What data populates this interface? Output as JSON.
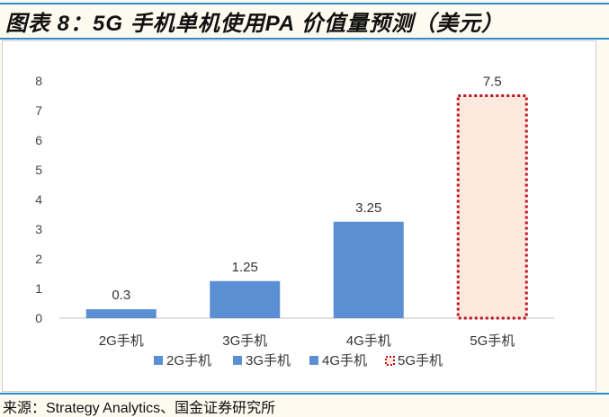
{
  "title": "图表 8：5G 手机单机使用PA 价值量预测（美元）",
  "source": "来源：Strategy Analytics、国金证券研究所",
  "colors": {
    "bar": "#5b8fd4",
    "projected_border": "#c0141c",
    "projected_fill": "#fde9dd",
    "rule": "#2e8bc9"
  },
  "chart_data": {
    "type": "bar",
    "categories": [
      "2G手机",
      "3G手机",
      "4G手机",
      "5G手机"
    ],
    "values": [
      0.3,
      1.25,
      3.25,
      7.5
    ],
    "data_labels": [
      "0.3",
      "1.25",
      "3.25",
      "7.5"
    ],
    "projected": [
      false,
      false,
      false,
      true
    ],
    "ylim": [
      0,
      8
    ],
    "yticks": [
      0,
      1,
      2,
      3,
      4,
      5,
      6,
      7,
      8
    ],
    "grid": false,
    "legend": {
      "placement": "bottom",
      "entries": [
        "2G手机",
        "3G手机",
        "4G手机",
        "5G手机"
      ]
    }
  }
}
